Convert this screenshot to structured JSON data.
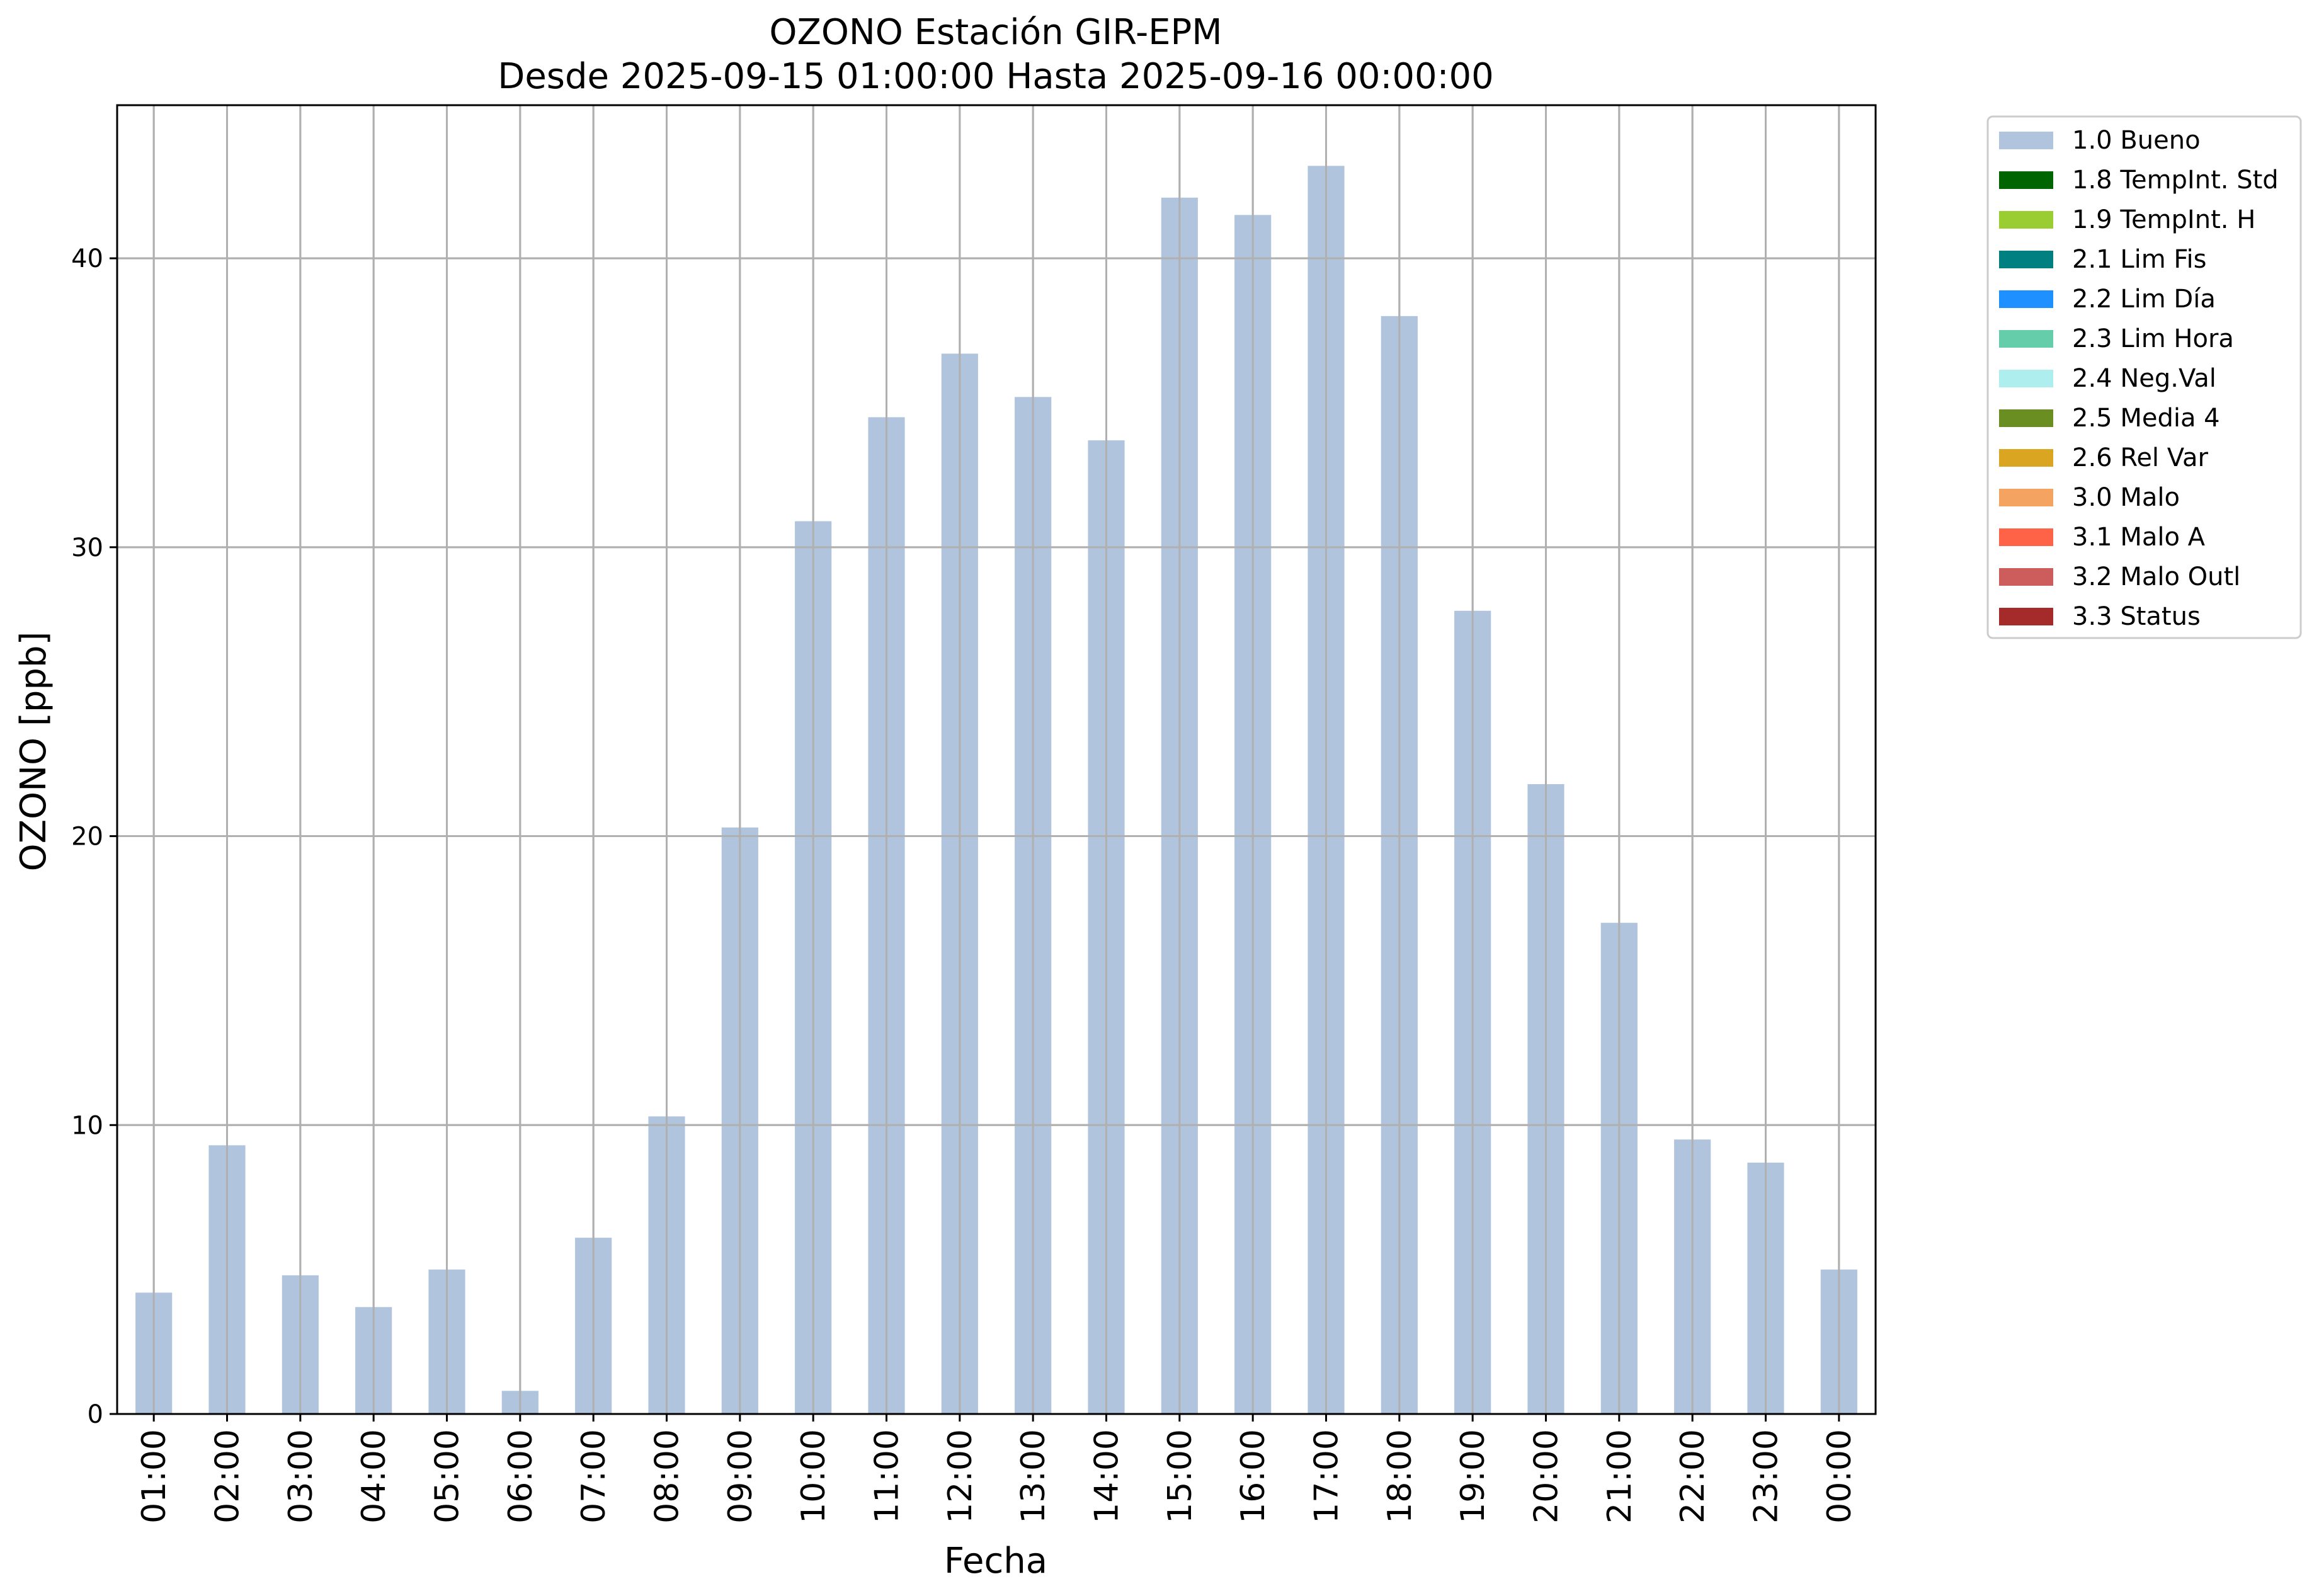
{
  "chart_data": {
    "type": "bar",
    "title_lines": [
      "OZONO Estación GIR-EPM",
      "Desde 2025-09-15 01:00:00 Hasta 2025-09-16 00:00:00"
    ],
    "xlabel": "Fecha",
    "ylabel": "OZONO [ppb]",
    "ylim": [
      0,
      45.3
    ],
    "yticks": [
      "0",
      "10",
      "20",
      "30",
      "40"
    ],
    "grid": true,
    "legend_position": "outside-right-top",
    "categories": [
      "01:00",
      "02:00",
      "03:00",
      "04:00",
      "05:00",
      "06:00",
      "07:00",
      "08:00",
      "09:00",
      "10:00",
      "11:00",
      "12:00",
      "13:00",
      "14:00",
      "15:00",
      "16:00",
      "17:00",
      "18:00",
      "19:00",
      "20:00",
      "21:00",
      "22:00",
      "23:00",
      "00:00"
    ],
    "series": [
      {
        "name": "1.0 Bueno",
        "color": "#b0c4de",
        "values": [
          4.2,
          9.3,
          4.8,
          3.7,
          5.0,
          0.8,
          6.1,
          10.3,
          20.3,
          30.9,
          34.5,
          36.7,
          35.2,
          33.7,
          42.1,
          41.5,
          43.2,
          38.0,
          27.8,
          21.8,
          17.0,
          9.5,
          8.7,
          5.0
        ]
      }
    ],
    "legend": [
      {
        "label": "1.0 Bueno",
        "color": "#b0c4de"
      },
      {
        "label": "1.8 TempInt. Std",
        "color": "#006400"
      },
      {
        "label": "1.9 TempInt. H",
        "color": "#9acd32"
      },
      {
        "label": "2.1 Lim Fis",
        "color": "#008080"
      },
      {
        "label": "2.2 Lim Día",
        "color": "#1e90ff"
      },
      {
        "label": "2.3 Lim Hora",
        "color": "#66cdaa"
      },
      {
        "label": "2.4 Neg.Val",
        "color": "#afeeee"
      },
      {
        "label": "2.5 Media 4",
        "color": "#6b8e23"
      },
      {
        "label": "2.6 Rel Var",
        "color": "#daa520"
      },
      {
        "label": "3.0 Malo",
        "color": "#f4a460"
      },
      {
        "label": "3.1 Malo A",
        "color": "#ff6347"
      },
      {
        "label": "3.2 Malo Outl",
        "color": "#cd5c5c"
      },
      {
        "label": "3.3 Status",
        "color": "#a52a2a"
      }
    ]
  }
}
